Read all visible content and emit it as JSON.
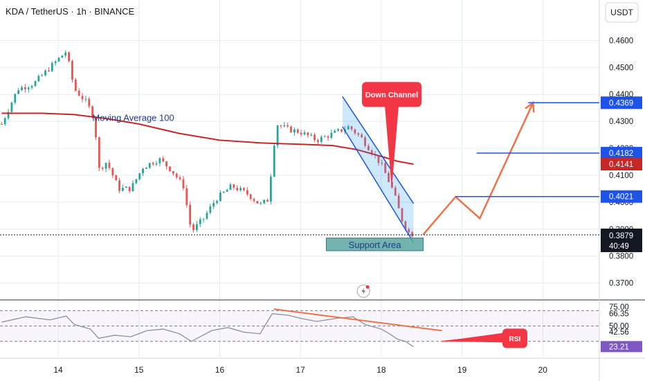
{
  "header": {
    "title": "KDA / TetherUS · 1h · BINANCE"
  },
  "currency_button": "USDT",
  "colors": {
    "up": "#26a69a",
    "down": "#ef5350",
    "ma": "#c62828",
    "blue": "#1e53e5",
    "orange": "#f07048",
    "grid": "#e6ecf4",
    "rsi": "#8a8fa0",
    "support_fill": "#5aa6a0"
  },
  "chart_data": [
    {
      "type": "candlestick",
      "title": "KDA / TetherUS · 1h · BINANCE",
      "ylim": [
        0.364,
        0.475
      ],
      "y_ticks": [
        0.37,
        0.38,
        0.39,
        0.4,
        0.41,
        0.42,
        0.43,
        0.44,
        0.45,
        0.46
      ],
      "y_tick_labels": [
        "0.3700",
        "0.3800",
        "0.3900",
        "0.4000",
        "0.4100",
        "0.4200",
        "0.4300",
        "0.4400",
        "0.4500",
        "0.4600"
      ],
      "x_ticks": [
        14,
        15,
        16,
        17,
        18,
        19,
        20
      ],
      "x_tick_labels": [
        "14",
        "15",
        "16",
        "17",
        "18",
        "19",
        "20"
      ],
      "xlim": [
        13.28,
        20.7
      ],
      "price_labels": [
        {
          "value": 0.4369,
          "text": "0.4369",
          "color": "#1e53e5"
        },
        {
          "value": 0.4182,
          "text": "0.4182",
          "color": "#1e53e5"
        },
        {
          "value": 0.4141,
          "text": "0.4141",
          "color": "#c62828"
        },
        {
          "value": 0.4021,
          "text": "0.4021",
          "color": "#1e53e5"
        },
        {
          "value": 0.3879,
          "text": "0.3879",
          "color": "#131722",
          "countdown": "40:49"
        }
      ],
      "closes": [
        {
          "x": 13.3,
          "y": 0.429
        },
        {
          "x": 13.5,
          "y": 0.442
        },
        {
          "x": 13.7,
          "y": 0.444
        },
        {
          "x": 13.9,
          "y": 0.45
        },
        {
          "x": 14.0,
          "y": 0.453
        },
        {
          "x": 14.1,
          "y": 0.456
        },
        {
          "x": 14.2,
          "y": 0.442
        },
        {
          "x": 14.35,
          "y": 0.437
        },
        {
          "x": 14.45,
          "y": 0.431
        },
        {
          "x": 14.5,
          "y": 0.412
        },
        {
          "x": 14.6,
          "y": 0.415
        },
        {
          "x": 14.75,
          "y": 0.405
        },
        {
          "x": 14.9,
          "y": 0.405
        },
        {
          "x": 15.05,
          "y": 0.413
        },
        {
          "x": 15.25,
          "y": 0.416
        },
        {
          "x": 15.4,
          "y": 0.412
        },
        {
          "x": 15.55,
          "y": 0.406
        },
        {
          "x": 15.65,
          "y": 0.389
        },
        {
          "x": 15.8,
          "y": 0.394
        },
        {
          "x": 15.95,
          "y": 0.401
        },
        {
          "x": 16.15,
          "y": 0.406
        },
        {
          "x": 16.35,
          "y": 0.403
        },
        {
          "x": 16.5,
          "y": 0.399
        },
        {
          "x": 16.6,
          "y": 0.401
        },
        {
          "x": 16.7,
          "y": 0.429
        },
        {
          "x": 16.85,
          "y": 0.427
        },
        {
          "x": 17.0,
          "y": 0.426
        },
        {
          "x": 17.2,
          "y": 0.423
        },
        {
          "x": 17.45,
          "y": 0.426
        },
        {
          "x": 17.6,
          "y": 0.428
        },
        {
          "x": 17.75,
          "y": 0.424
        },
        {
          "x": 17.9,
          "y": 0.418
        },
        {
          "x": 18.0,
          "y": 0.414
        },
        {
          "x": 18.15,
          "y": 0.404
        },
        {
          "x": 18.25,
          "y": 0.394
        },
        {
          "x": 18.33,
          "y": 0.389
        },
        {
          "x": 18.4,
          "y": 0.3879
        }
      ],
      "series": [
        {
          "name": "Moving Average 100",
          "points": [
            {
              "x": 13.3,
              "y": 0.433
            },
            {
              "x": 13.8,
              "y": 0.433
            },
            {
              "x": 14.2,
              "y": 0.4325
            },
            {
              "x": 14.6,
              "y": 0.431
            },
            {
              "x": 15.0,
              "y": 0.429
            },
            {
              "x": 15.5,
              "y": 0.4255
            },
            {
              "x": 16.0,
              "y": 0.423
            },
            {
              "x": 16.5,
              "y": 0.422
            },
            {
              "x": 17.0,
              "y": 0.4215
            },
            {
              "x": 17.4,
              "y": 0.421
            },
            {
              "x": 17.7,
              "y": 0.4195
            },
            {
              "x": 18.0,
              "y": 0.417
            },
            {
              "x": 18.2,
              "y": 0.4152
            },
            {
              "x": 18.4,
              "y": 0.4141
            }
          ]
        }
      ],
      "channel": {
        "label": "Down Channel",
        "upper": [
          {
            "x": 17.52,
            "y": 0.4392
          },
          {
            "x": 18.4,
            "y": 0.3995
          }
        ],
        "lower": [
          {
            "x": 17.52,
            "y": 0.428
          },
          {
            "x": 18.4,
            "y": 0.385
          }
        ]
      },
      "support_area": {
        "label": "Support Area",
        "x": [
          17.32,
          18.52
        ],
        "y": [
          0.382,
          0.3867
        ]
      },
      "projection": [
        {
          "x": 18.52,
          "y": 0.388
        },
        {
          "x": 18.92,
          "y": 0.402
        },
        {
          "x": 19.22,
          "y": 0.394
        },
        {
          "x": 19.88,
          "y": 0.4369
        }
      ],
      "levels": [
        {
          "value": 0.4369,
          "from_x": 19.82
        },
        {
          "value": 0.4182,
          "from_x": 19.18
        },
        {
          "value": 0.4021,
          "from_x": 18.92
        }
      ],
      "annotations": [
        "Moving Average 100",
        "Down Channel",
        "Support Area"
      ]
    },
    {
      "type": "line",
      "title": "RSI",
      "ylim": [
        10,
        83
      ],
      "y_tick_labels": [
        "75.00",
        "66.35",
        "50.00",
        "42.56",
        "23.21"
      ],
      "y_ticks": [
        75,
        66.35,
        50,
        42.56,
        23.21
      ],
      "levels": [
        {
          "value": 70
        },
        {
          "value": 50
        },
        {
          "value": 30
        }
      ],
      "current_value": 23.21,
      "series": [
        {
          "name": "RSI",
          "points": [
            {
              "x": 13.3,
              "y": 55
            },
            {
              "x": 13.6,
              "y": 62
            },
            {
              "x": 13.9,
              "y": 58
            },
            {
              "x": 14.1,
              "y": 63
            },
            {
              "x": 14.2,
              "y": 52
            },
            {
              "x": 14.4,
              "y": 46
            },
            {
              "x": 14.5,
              "y": 34
            },
            {
              "x": 14.7,
              "y": 38
            },
            {
              "x": 14.9,
              "y": 36
            },
            {
              "x": 15.1,
              "y": 44
            },
            {
              "x": 15.3,
              "y": 46
            },
            {
              "x": 15.5,
              "y": 40
            },
            {
              "x": 15.65,
              "y": 30
            },
            {
              "x": 15.9,
              "y": 44
            },
            {
              "x": 16.1,
              "y": 48
            },
            {
              "x": 16.3,
              "y": 42
            },
            {
              "x": 16.5,
              "y": 40
            },
            {
              "x": 16.65,
              "y": 66
            },
            {
              "x": 16.85,
              "y": 64
            },
            {
              "x": 17.0,
              "y": 60
            },
            {
              "x": 17.2,
              "y": 56
            },
            {
              "x": 17.45,
              "y": 60
            },
            {
              "x": 17.65,
              "y": 62
            },
            {
              "x": 17.8,
              "y": 52
            },
            {
              "x": 18.0,
              "y": 46
            },
            {
              "x": 18.1,
              "y": 40
            },
            {
              "x": 18.2,
              "y": 33
            },
            {
              "x": 18.3,
              "y": 30
            },
            {
              "x": 18.4,
              "y": 23
            }
          ]
        }
      ],
      "trendlines": [
        {
          "points": [
            {
              "x": 16.67,
              "y": 72
            },
            {
              "x": 18.75,
              "y": 44
            }
          ]
        },
        {
          "points": [
            {
              "x": 18.75,
              "y": 30
            },
            {
              "x": 19.5,
              "y": 38
            }
          ]
        }
      ],
      "annotations": [
        "RSI"
      ]
    }
  ]
}
